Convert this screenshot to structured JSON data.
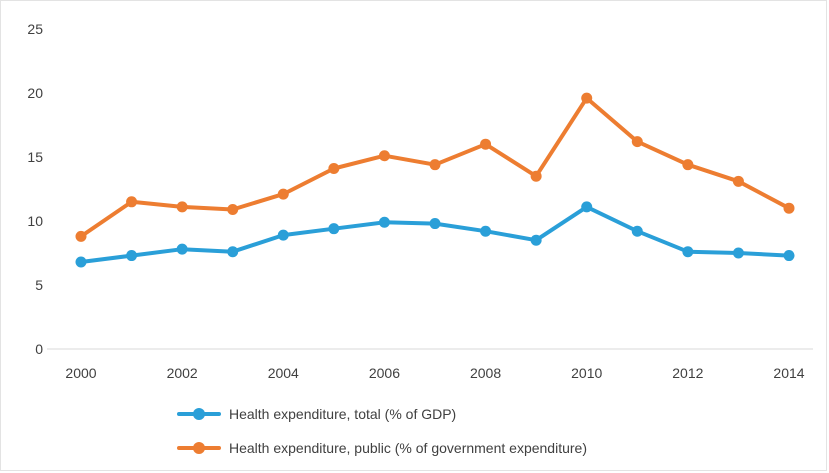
{
  "chart_data": {
    "type": "line",
    "title": "",
    "xlabel": "",
    "ylabel": "",
    "x": [
      2000,
      2001,
      2002,
      2003,
      2004,
      2005,
      2006,
      2007,
      2008,
      2009,
      2010,
      2011,
      2012,
      2013,
      2014
    ],
    "xticks": [
      "2000",
      "2002",
      "2004",
      "2006",
      "2008",
      "2010",
      "2012",
      "2014"
    ],
    "yticks": [
      "0",
      "5",
      "10",
      "15",
      "20",
      "25"
    ],
    "ylim": [
      0,
      25
    ],
    "grid": false,
    "legend_position": "bottom",
    "series": [
      {
        "name": "Health expenditure, total (% of GDP)",
        "color": "#2a9fd8",
        "values": [
          6.8,
          7.3,
          7.8,
          7.6,
          8.9,
          9.4,
          9.9,
          9.8,
          9.2,
          8.5,
          11.1,
          9.2,
          7.6,
          7.5,
          7.3
        ]
      },
      {
        "name": "Health expenditure, public (% of government expenditure)",
        "color": "#ed7d31",
        "values": [
          8.8,
          11.5,
          11.1,
          10.9,
          12.1,
          14.1,
          15.1,
          14.4,
          16.0,
          13.5,
          19.6,
          16.2,
          14.4,
          13.1,
          11.0
        ]
      }
    ]
  }
}
